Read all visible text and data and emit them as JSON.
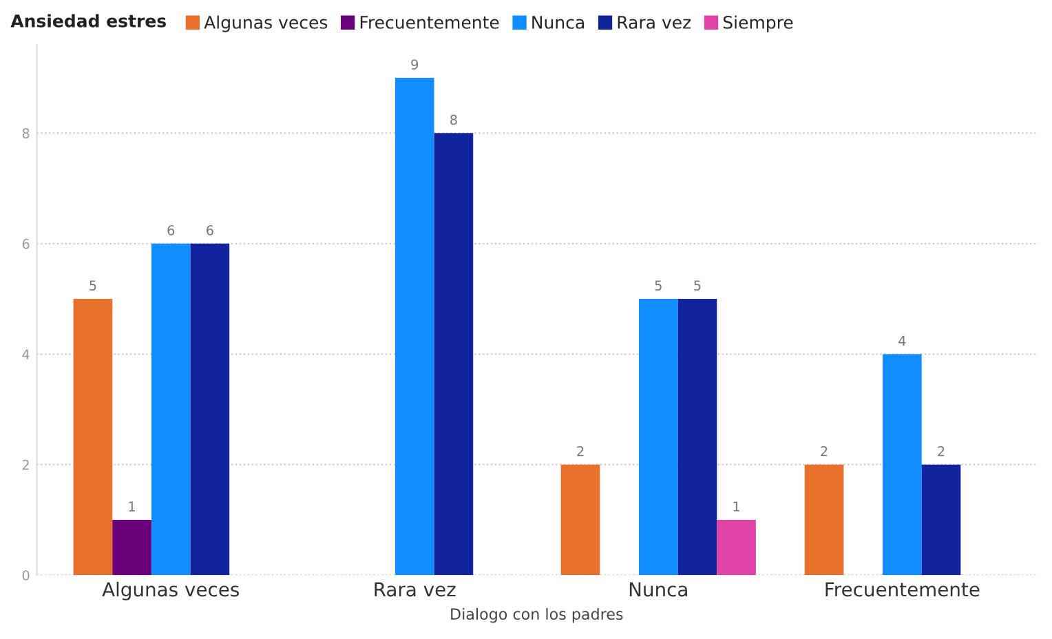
{
  "chart_data": {
    "type": "bar",
    "xlabel": "Dialogo con los padres",
    "legend_title": "Ansiedad estres",
    "categories": [
      "Algunas veces",
      "Rara vez",
      "Nunca",
      "Frecuentemente"
    ],
    "series": [
      {
        "name": "Algunas veces",
        "color": "#e8702a",
        "values": [
          5,
          null,
          2,
          2
        ]
      },
      {
        "name": "Frecuentemente",
        "color": "#6b007b",
        "values": [
          1,
          null,
          null,
          null
        ]
      },
      {
        "name": "Nunca",
        "color": "#118dff",
        "values": [
          6,
          9,
          5,
          4
        ]
      },
      {
        "name": "Rara vez",
        "color": "#12239e",
        "values": [
          6,
          8,
          5,
          2
        ]
      },
      {
        "name": "Siempre",
        "color": "#e044a7",
        "values": [
          null,
          null,
          1,
          null
        ]
      }
    ],
    "ylim": [
      0,
      9.6
    ],
    "yticks": [
      0,
      2,
      4,
      6,
      8
    ],
    "grid": "y",
    "legend": "top left",
    "data_labels": true
  }
}
